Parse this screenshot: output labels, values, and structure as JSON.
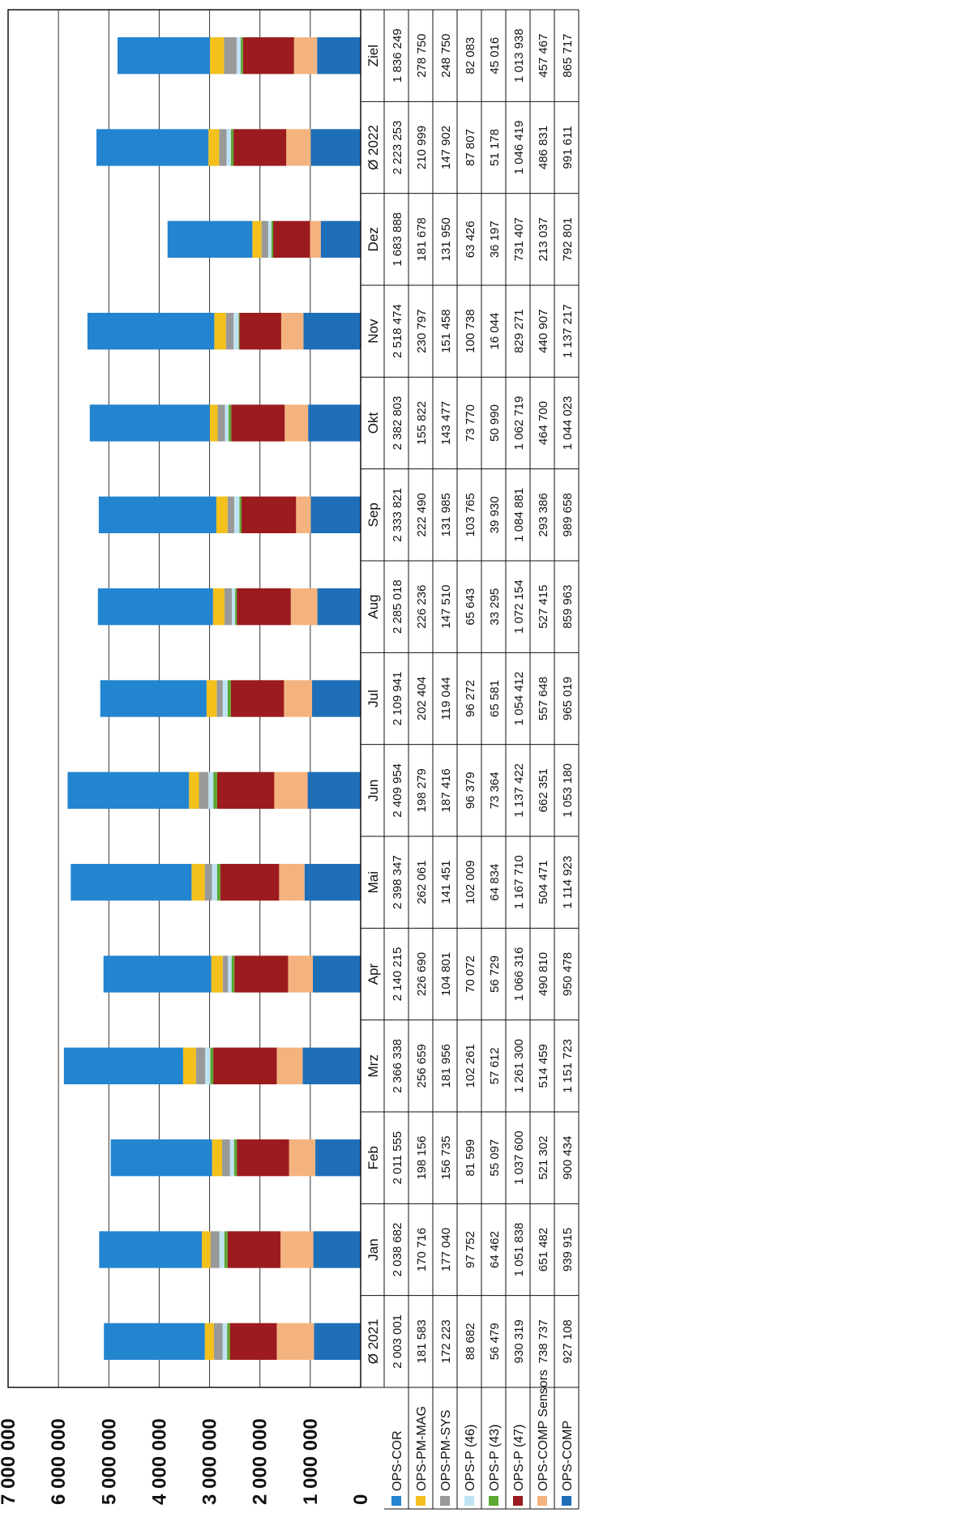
{
  "chart_data": {
    "type": "bar",
    "stacked": true,
    "title": "",
    "xlabel": "",
    "ylabel": "",
    "ylim": [
      0,
      7000000
    ],
    "grid": true,
    "yticks": [
      "0",
      "1 000 000",
      "2 000 000",
      "3 000 000",
      "4 000 000",
      "5 000 000",
      "6 000 000",
      "7 000 000"
    ],
    "categories": [
      "Ø 2021",
      "Jan",
      "Feb",
      "Mrz",
      "Apr",
      "Mai",
      "Jun",
      "Jul",
      "Aug",
      "Sep",
      "Okt",
      "Nov",
      "Dez",
      "Ø 2022",
      "Ziel"
    ],
    "series": [
      {
        "name": "OPS-COMP",
        "color": "#1f6fb8",
        "values": [
          927108,
          939915,
          900434,
          1151723,
          950478,
          1114923,
          1053180,
          965019,
          859963,
          989658,
          1044023,
          1137217,
          792801,
          991611,
          865717
        ],
        "labels": [
          "927 108",
          "939 915",
          "900 434",
          "1 151 723",
          "950 478",
          "1 114 923",
          "1 053 180",
          "965 019",
          "859 963",
          "989 658",
          "1 044 023",
          "1 137 217",
          "792 801",
          "991 611",
          "865 717"
        ]
      },
      {
        "name": "OPS-COMP Sensors",
        "color": "#f4b37e",
        "values": [
          738737,
          651482,
          521302,
          514459,
          490810,
          504471,
          662351,
          557648,
          527415,
          293386,
          464700,
          440907,
          213037,
          486831,
          457467
        ],
        "labels": [
          "738 737",
          "651 482",
          "521 302",
          "514 459",
          "490 810",
          "504 471",
          "662 351",
          "557 648",
          "527 415",
          "293 386",
          "464 700",
          "440 907",
          "213 037",
          "486 831",
          "457 467"
        ]
      },
      {
        "name": "OPS-P (47)",
        "color": "#9b1b1e",
        "values": [
          930319,
          1051838,
          1037600,
          1261300,
          1066316,
          1167710,
          1137422,
          1054412,
          1072154,
          1084881,
          1062719,
          829271,
          731407,
          1046419,
          1013938
        ],
        "labels": [
          "930 319",
          "1 051 838",
          "1 037 600",
          "1 261 300",
          "1 066 316",
          "1 167 710",
          "1 137 422",
          "1 054 412",
          "1 072 154",
          "1 084 881",
          "1 062 719",
          "829 271",
          "731 407",
          "1 046 419",
          "1 013 938"
        ]
      },
      {
        "name": "OPS-P (43)",
        "color": "#5ca832",
        "values": [
          56479,
          64462,
          55097,
          57612,
          56729,
          64834,
          73364,
          65581,
          33295,
          39930,
          50990,
          16044,
          36197,
          51178,
          45016
        ],
        "labels": [
          "56 479",
          "64 462",
          "55 097",
          "57 612",
          "56 729",
          "64 834",
          "73 364",
          "65 581",
          "33 295",
          "39 930",
          "50 990",
          "16 044",
          "36 197",
          "51 178",
          "45 016"
        ]
      },
      {
        "name": "OPS-P (46)",
        "color": "#bfe3f2",
        "values": [
          88682,
          97752,
          81599,
          102261,
          70072,
          102009,
          96379,
          96272,
          65643,
          103765,
          73770,
          100738,
          63426,
          87807,
          82083
        ],
        "labels": [
          "88 682",
          "97 752",
          "81 599",
          "102 261",
          "70 072",
          "102 009",
          "96 379",
          "96 272",
          "65 643",
          "103 765",
          "73 770",
          "100 738",
          "63 426",
          "87 807",
          "82 083"
        ]
      },
      {
        "name": "OPS-PM-SYS",
        "color": "#999999",
        "values": [
          172223,
          177040,
          156735,
          181956,
          104801,
          141451,
          187416,
          119044,
          147510,
          131985,
          143477,
          151458,
          131950,
          147902,
          248750
        ],
        "labels": [
          "172 223",
          "177 040",
          "156 735",
          "181 956",
          "104 801",
          "141 451",
          "187 416",
          "119 044",
          "147 510",
          "131 985",
          "143 477",
          "151 458",
          "131 950",
          "147 902",
          "248 750"
        ]
      },
      {
        "name": "OPS-PM-MAG",
        "color": "#f3c01c",
        "values": [
          181583,
          170716,
          198156,
          256659,
          226690,
          262061,
          198279,
          202404,
          226236,
          222490,
          155822,
          230797,
          181678,
          210999,
          278750
        ],
        "labels": [
          "181 583",
          "170 716",
          "198 156",
          "256 659",
          "226 690",
          "262 061",
          "198 279",
          "202 404",
          "226 236",
          "222 490",
          "155 822",
          "230 797",
          "181 678",
          "210 999",
          "278 750"
        ]
      },
      {
        "name": "OPS-COR",
        "color": "#2384cf",
        "values": [
          2003001,
          2038682,
          2011555,
          2366338,
          2140215,
          2398347,
          2409954,
          2109941,
          2285018,
          2333821,
          2382803,
          2518474,
          1683888,
          2223253,
          1836249
        ],
        "labels": [
          "2 003 001",
          "2 038 682",
          "2 011 555",
          "2 366 338",
          "2 140 215",
          "2 398 347",
          "2 409 954",
          "2 109 941",
          "2 285 018",
          "2 333 821",
          "2 382 803",
          "2 518 474",
          "1 683 888",
          "2 223 253",
          "1 836 249"
        ]
      }
    ],
    "table_row_order": [
      "OPS-COR",
      "OPS-PM-MAG",
      "OPS-PM-SYS",
      "OPS-P (46)",
      "OPS-P (43)",
      "OPS-P (47)",
      "OPS-COMP Sensors",
      "OPS-COMP"
    ]
  }
}
